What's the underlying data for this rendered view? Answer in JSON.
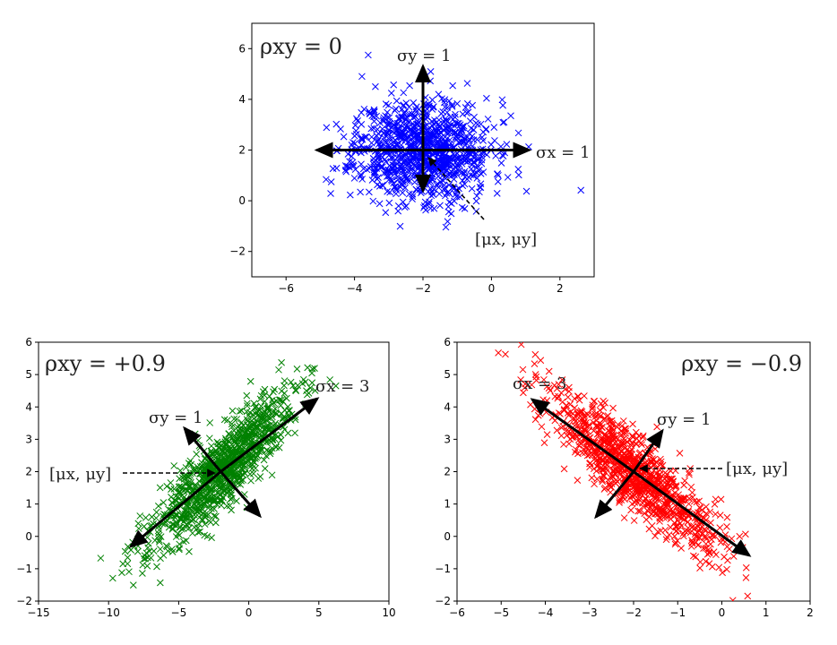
{
  "figure": {
    "description_free": true
  },
  "chart_data": [
    {
      "id": "top",
      "type": "scatter",
      "marker": "x",
      "color": "#0000ff",
      "title": "",
      "xlabel": "",
      "ylabel": "",
      "xlim": [
        -7,
        3
      ],
      "ylim": [
        -3,
        7
      ],
      "xticks": [
        -6,
        -4,
        -2,
        0,
        2
      ],
      "yticks": [
        -2,
        0,
        2,
        4,
        6
      ],
      "grid": false,
      "center": [
        -2,
        2
      ],
      "sigma_x": 1,
      "sigma_y": 1,
      "rho": 0,
      "num_points": 1000,
      "annotations": {
        "rho": "ρxy = 0",
        "sigma_x": "σx = 1",
        "sigma_y": "σy = 1",
        "mean": "[μx,  μy]"
      }
    },
    {
      "id": "bottom-left",
      "type": "scatter",
      "marker": "x",
      "color": "#008000",
      "title": "",
      "xlabel": "",
      "ylabel": "",
      "xlim": [
        -15,
        10
      ],
      "ylim": [
        -2,
        6
      ],
      "xticks": [
        -15,
        -10,
        -5,
        0,
        5,
        10
      ],
      "yticks": [
        -2,
        -1,
        0,
        1,
        2,
        3,
        4,
        5,
        6
      ],
      "grid": false,
      "center": [
        -2,
        2
      ],
      "sigma_x": 3,
      "sigma_y": 1,
      "rho": 0.9,
      "num_points": 1000,
      "annotations": {
        "rho": "ρxy = +0.9",
        "sigma_x": "σx = 3",
        "sigma_y": "σy = 1",
        "mean": "[μx,  μy]"
      }
    },
    {
      "id": "bottom-right",
      "type": "scatter",
      "marker": "x",
      "color": "#ff0000",
      "title": "",
      "xlabel": "",
      "ylabel": "",
      "xlim": [
        -6,
        2
      ],
      "ylim": [
        -2,
        6
      ],
      "xticks": [
        -6,
        -5,
        -4,
        -3,
        -2,
        -1,
        0,
        1,
        2
      ],
      "yticks": [
        -2,
        -1,
        0,
        1,
        2,
        3,
        4,
        5,
        6
      ],
      "grid": false,
      "center": [
        -2,
        2
      ],
      "sigma_x": 3,
      "sigma_y": 1,
      "rho": -0.9,
      "num_points": 1000,
      "annotations": {
        "rho": "ρxy = −0.9",
        "sigma_x": "σx = 3",
        "sigma_y": "σy = 1",
        "mean": "[μx,  μy]"
      }
    }
  ]
}
